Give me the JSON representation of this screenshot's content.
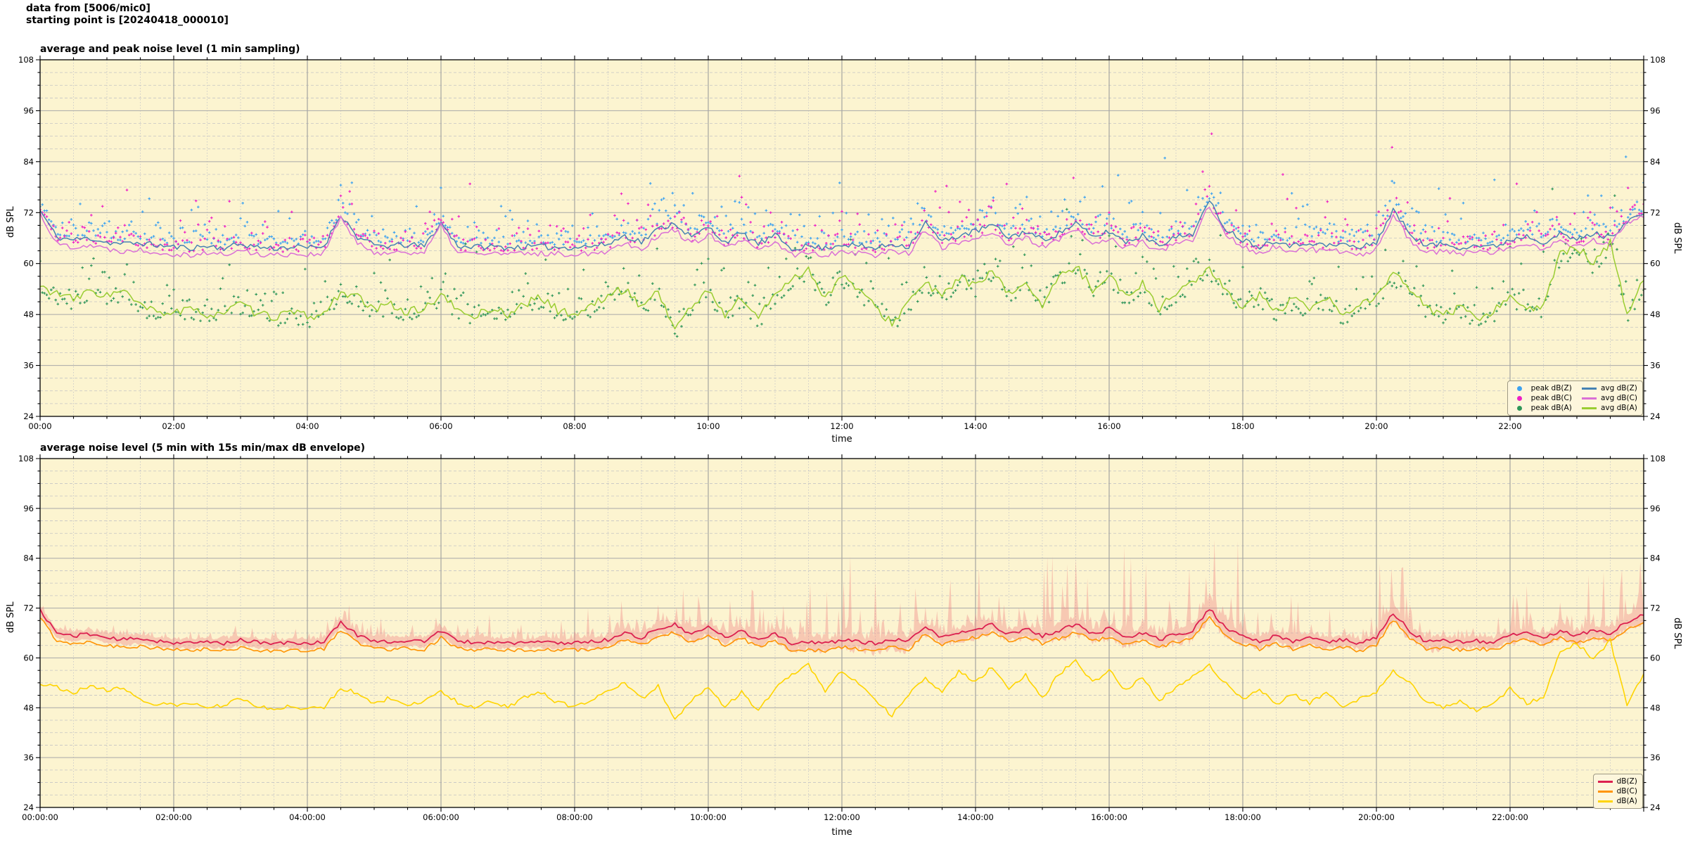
{
  "header": {
    "line1": "data from [5006/mic0]",
    "line2": "starting point is [20240418_000010]"
  },
  "chart_data": [
    {
      "id": "top",
      "type": "line+scatter",
      "title": "average and peak noise level (1 min sampling)",
      "xlabel": "time",
      "ylabel_left": "dB SPL",
      "ylabel_right": "dB SPL",
      "xlim_hours": [
        0,
        24
      ],
      "ylim": [
        24,
        108
      ],
      "y_ticks": [
        24,
        36,
        48,
        60,
        72,
        84,
        96,
        108
      ],
      "y_minor_step": 3,
      "x_major_step_h": 2,
      "x_minor_step_h": 0.5,
      "x_tick_labels": [
        "00:00",
        "02:00",
        "04:00",
        "06:00",
        "08:00",
        "10:00",
        "12:00",
        "14:00",
        "16:00",
        "18:00",
        "20:00",
        "22:00"
      ],
      "activity_per_hour": [
        3,
        2,
        2,
        2,
        5,
        4,
        3,
        3,
        8,
        10,
        9,
        10,
        15,
        12,
        12,
        16,
        16,
        18,
        8,
        6,
        15,
        6,
        10,
        13,
        13
      ],
      "lines": [
        {
          "name": "avg dB(Z)",
          "color": "#4682b4",
          "width": 1.5,
          "jitter": 0.7,
          "seed": 11,
          "t0": 0,
          "dt": 0.25,
          "y": [
            72.5,
            66.2,
            65.6,
            66.0,
            65.0,
            64.6,
            64.9,
            64.3,
            63.9,
            63.7,
            64.1,
            63.7,
            64.6,
            63.9,
            63.6,
            63.9,
            63.7,
            64.1,
            71.6,
            66.2,
            64.3,
            64.1,
            64.4,
            64.1,
            69.6,
            64.2,
            63.9,
            64.0,
            63.8,
            63.9,
            64.0,
            63.8,
            63.9,
            64.1,
            64.6,
            66.6,
            65.1,
            68.1,
            69.6,
            66.1,
            68.6,
            65.1,
            67.1,
            64.6,
            66.6,
            63.6,
            64.1,
            63.6,
            64.6,
            64.1,
            63.6,
            64.6,
            64.1,
            69.6,
            65.1,
            66.6,
            67.6,
            69.1,
            66.1,
            67.6,
            65.6,
            67.1,
            69.6,
            66.1,
            67.6,
            65.1,
            66.6,
            64.6,
            66.1,
            67.1,
            74.6,
            68.1,
            65.6,
            64.1,
            65.6,
            64.1,
            65.1,
            64.1,
            64.6,
            63.6,
            65.1,
            72.6,
            67.1,
            64.1,
            64.6,
            63.9,
            64.3,
            63.9,
            65.6,
            66.6,
            65.1,
            66.9,
            65.6,
            67.1,
            66.1,
            70.1,
            71.6
          ]
        },
        {
          "name": "avg dB(C)",
          "color": "#da70d6",
          "width": 1.5,
          "jitter": 0.7,
          "seed": 22,
          "t0": 0,
          "dt": 0.25,
          "y": [
            71.8,
            64.6,
            64.0,
            64.4,
            63.4,
            63.0,
            63.3,
            62.7,
            62.3,
            62.1,
            62.5,
            62.1,
            63.0,
            62.3,
            62.0,
            62.3,
            62.1,
            62.5,
            70.9,
            64.6,
            62.7,
            62.5,
            62.8,
            62.5,
            68.9,
            62.6,
            62.3,
            62.4,
            62.2,
            62.3,
            62.4,
            62.2,
            62.3,
            62.5,
            63.0,
            65.0,
            63.5,
            66.5,
            68.0,
            64.5,
            67.0,
            63.5,
            65.5,
            63.0,
            65.0,
            62.0,
            62.5,
            62.0,
            63.0,
            62.5,
            62.0,
            63.0,
            62.5,
            68.0,
            63.5,
            65.0,
            66.0,
            67.5,
            64.5,
            66.0,
            64.0,
            65.5,
            68.0,
            64.5,
            66.0,
            63.5,
            65.0,
            63.0,
            64.5,
            65.5,
            73.9,
            66.5,
            64.0,
            62.5,
            64.0,
            62.5,
            63.5,
            62.5,
            63.0,
            62.0,
            63.5,
            71.9,
            65.5,
            62.5,
            63.0,
            62.3,
            62.7,
            62.3,
            64.0,
            65.0,
            63.5,
            65.3,
            64.0,
            65.5,
            64.5,
            69.4,
            70.9
          ]
        },
        {
          "name": "avg dB(A)",
          "color": "#9acd32",
          "width": 1.5,
          "jitter": 1.0,
          "seed": 33,
          "t0": 0,
          "dt": 0.25,
          "y": [
            54.5,
            53.0,
            51.5,
            53.5,
            52.5,
            53.5,
            50.0,
            48.5,
            48.5,
            49.0,
            48.0,
            48.5,
            50.5,
            48.0,
            47.5,
            48.5,
            47.5,
            48.0,
            53.5,
            52.0,
            49.0,
            50.5,
            48.5,
            49.5,
            52.5,
            49.0,
            47.5,
            49.5,
            48.0,
            50.5,
            52.0,
            49.0,
            48.0,
            50.0,
            52.5,
            54.0,
            50.0,
            53.5,
            44.5,
            50.0,
            53.5,
            48.0,
            52.0,
            47.0,
            53.0,
            56.5,
            58.5,
            52.0,
            57.0,
            54.0,
            49.5,
            46.0,
            51.0,
            55.5,
            52.0,
            57.0,
            54.5,
            58.0,
            52.5,
            56.0,
            50.0,
            56.5,
            59.5,
            54.0,
            57.5,
            52.0,
            55.5,
            49.5,
            53.0,
            56.0,
            58.5,
            53.5,
            50.0,
            52.5,
            48.5,
            51.5,
            49.0,
            52.0,
            47.5,
            50.5,
            52.0,
            57.5,
            54.0,
            49.5,
            48.0,
            49.5,
            47.0,
            48.5,
            53.0,
            49.0,
            50.0,
            62.0,
            64.0,
            60.0,
            65.0,
            48.0,
            56.0
          ]
        }
      ],
      "scatters": [
        {
          "name": "peak dB(Z)",
          "color": "#3da2f0",
          "marker": "plus",
          "seed": 101,
          "follows": 0,
          "step_min": 2,
          "base": 0.6,
          "spread": 2.1,
          "out_rate": 0.013,
          "out_scale": 0.9
        },
        {
          "name": "peak dB(C)",
          "color": "#ee1fc5",
          "marker": "plus",
          "seed": 202,
          "follows": 1,
          "step_min": 2,
          "base": 0.6,
          "spread": 2.3,
          "out_rate": 0.013,
          "out_scale": 0.9
        },
        {
          "name": "peak dB(A)",
          "color": "#2f9659",
          "marker": "plus",
          "seed": 303,
          "follows": 2,
          "step_min": 2,
          "base": -2.5,
          "spread": 3.2,
          "out_rate": 0.01,
          "out_scale": 0.55
        }
      ],
      "legend": {
        "position": "lower right",
        "items": [
          {
            "label": "peak dB(Z)",
            "marker": "dot",
            "color": "#3da2f0"
          },
          {
            "label": "peak dB(C)",
            "marker": "dot",
            "color": "#ee1fc5"
          },
          {
            "label": "peak dB(A)",
            "marker": "dot",
            "color": "#2f9659"
          },
          {
            "label": "avg dB(Z)",
            "marker": "line",
            "color": "#4682b4"
          },
          {
            "label": "avg dB(C)",
            "marker": "line",
            "color": "#da70d6"
          },
          {
            "label": "avg dB(A)",
            "marker": "line",
            "color": "#9acd32"
          }
        ]
      }
    },
    {
      "id": "bottom",
      "type": "line+envelope",
      "title": "average noise level (5 min with 15s min/max dB envelope)",
      "xlabel": "time",
      "ylabel_left": "dB SPL",
      "ylabel_right": "dB SPL",
      "xlim_hours": [
        0,
        24
      ],
      "ylim": [
        24,
        108
      ],
      "y_ticks": [
        24,
        36,
        48,
        60,
        72,
        84,
        96,
        108
      ],
      "y_minor_step": 3,
      "x_major_step_h": 2,
      "x_minor_step_h": 0.5,
      "x_tick_labels": [
        "00:00:00",
        "02:00:00",
        "04:00:00",
        "06:00:00",
        "08:00:00",
        "10:00:00",
        "12:00:00",
        "14:00:00",
        "16:00:00",
        "18:00:00",
        "20:00:00",
        "22:00:00"
      ],
      "activity_per_hour": [
        3,
        2,
        2,
        2,
        5,
        4,
        3,
        3,
        8,
        10,
        9,
        10,
        15,
        12,
        12,
        16,
        16,
        18,
        8,
        6,
        15,
        6,
        10,
        13,
        13
      ],
      "envelope": {
        "name": "15s min/max dB envelope",
        "color": "rgba(240,128,128,0.38)",
        "follows": 0,
        "seed": 77,
        "step_min": 1.5,
        "up_base": 0.7,
        "up_spread": 0.8,
        "spike_rate": 0.055,
        "down_base": 0.9,
        "down_spread": 1.1
      },
      "lines": [
        {
          "name": "dB(Z)",
          "color": "#dc2050",
          "width": 1.8,
          "jitter": 0.45,
          "seed": 44,
          "t0": 0,
          "dt": 0.25,
          "y": [
            71.5,
            66.0,
            65.3,
            65.8,
            64.8,
            64.4,
            64.7,
            64.1,
            63.7,
            63.5,
            63.9,
            63.5,
            64.4,
            63.7,
            63.4,
            63.7,
            63.5,
            63.9,
            68.6,
            65.5,
            64.1,
            63.9,
            64.2,
            63.9,
            66.6,
            64.0,
            63.7,
            63.8,
            63.6,
            63.7,
            63.8,
            63.6,
            63.7,
            63.9,
            64.4,
            66.0,
            64.9,
            67.0,
            68.0,
            65.5,
            67.5,
            64.9,
            66.5,
            64.4,
            66.0,
            63.4,
            63.9,
            63.4,
            64.4,
            63.9,
            63.4,
            64.4,
            63.9,
            67.5,
            64.9,
            66.0,
            66.8,
            68.0,
            65.7,
            67.0,
            65.3,
            66.5,
            68.2,
            65.7,
            67.0,
            64.9,
            66.0,
            64.4,
            65.7,
            66.5,
            71.9,
            67.0,
            65.3,
            63.9,
            65.3,
            63.9,
            64.9,
            63.9,
            64.4,
            63.4,
            64.9,
            70.9,
            66.5,
            63.9,
            64.4,
            63.7,
            64.1,
            63.7,
            65.3,
            66.2,
            64.9,
            66.6,
            65.3,
            66.8,
            65.8,
            68.8,
            70.3
          ]
        },
        {
          "name": "dB(C)",
          "color": "#ff9404",
          "width": 1.6,
          "jitter": 0.45,
          "seed": 55,
          "t0": 0,
          "dt": 0.25,
          "y": [
            69.7,
            64.2,
            63.5,
            64.0,
            63.0,
            62.6,
            62.9,
            62.3,
            61.9,
            61.7,
            62.1,
            61.7,
            62.6,
            61.9,
            61.6,
            61.9,
            61.7,
            62.1,
            66.8,
            63.7,
            62.3,
            62.1,
            62.4,
            62.1,
            64.8,
            62.2,
            61.9,
            62.0,
            61.8,
            61.9,
            62.0,
            61.8,
            61.9,
            62.1,
            62.6,
            64.2,
            63.1,
            65.2,
            66.2,
            63.7,
            65.7,
            63.1,
            64.7,
            62.6,
            64.2,
            61.6,
            62.1,
            61.6,
            62.6,
            62.1,
            61.6,
            62.6,
            62.1,
            65.7,
            63.1,
            64.2,
            65.0,
            66.2,
            63.9,
            65.2,
            63.5,
            64.7,
            66.4,
            63.9,
            65.2,
            63.1,
            64.2,
            62.6,
            63.9,
            64.7,
            70.1,
            65.2,
            63.5,
            62.1,
            63.5,
            62.1,
            63.1,
            62.1,
            62.6,
            61.6,
            63.1,
            69.1,
            64.7,
            62.1,
            62.6,
            61.9,
            62.3,
            61.9,
            63.5,
            64.4,
            63.1,
            64.8,
            63.5,
            65.0,
            64.0,
            67.0,
            68.5
          ]
        },
        {
          "name": "dB(A)",
          "color": "#ffd400",
          "width": 1.6,
          "jitter": 0.5,
          "seed": 66,
          "t0": 0,
          "dt": 0.25,
          "y": [
            54.0,
            53.0,
            51.8,
            53.0,
            52.2,
            53.0,
            50.0,
            48.8,
            48.6,
            49.0,
            48.2,
            48.6,
            50.2,
            48.2,
            47.8,
            48.6,
            47.6,
            48.2,
            52.8,
            51.6,
            49.2,
            50.4,
            48.6,
            49.6,
            52.2,
            49.2,
            47.8,
            49.6,
            48.2,
            50.4,
            51.8,
            49.2,
            48.2,
            50.0,
            52.2,
            53.8,
            50.2,
            53.2,
            45.0,
            50.0,
            53.2,
            48.2,
            51.8,
            47.2,
            52.8,
            56.2,
            58.2,
            52.2,
            56.8,
            54.0,
            49.6,
            46.2,
            51.0,
            55.2,
            52.0,
            56.8,
            54.4,
            57.8,
            52.6,
            55.8,
            50.2,
            56.2,
            59.2,
            54.0,
            57.2,
            52.2,
            55.4,
            49.8,
            52.8,
            55.8,
            58.2,
            53.6,
            50.2,
            52.4,
            48.6,
            51.4,
            49.2,
            51.8,
            47.8,
            50.4,
            52.0,
            57.2,
            53.8,
            49.6,
            48.2,
            49.6,
            47.2,
            48.6,
            52.6,
            49.2,
            50.2,
            61.6,
            63.4,
            59.8,
            64.2,
            48.4,
            56.2
          ]
        }
      ],
      "legend": {
        "position": "lower right",
        "items": [
          {
            "label": "dB(Z)",
            "marker": "line",
            "color": "#dc2050"
          },
          {
            "label": "dB(C)",
            "marker": "line",
            "color": "#ff9404"
          },
          {
            "label": "dB(A)",
            "marker": "line",
            "color": "#ffd400"
          }
        ]
      }
    }
  ]
}
